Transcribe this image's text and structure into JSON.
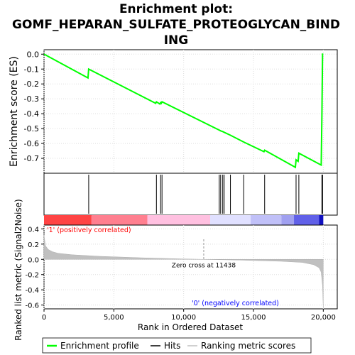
{
  "chart_data": {
    "type": "line",
    "title": "Enrichment plot:\nGOMF_HEPARAN_SULFATE_PROTEOGLYCAN_BIND\nING",
    "title_lines": [
      "Enrichment plot:",
      "GOMF_HEPARAN_SULFATE_PROTEOGLYCAN_BIND",
      "ING"
    ],
    "xlabel": "Rank in Ordered Dataset",
    "top_ylabel": "Enrichment score (ES)",
    "bottom_ylabel": "Ranked list metric (Signal2Noise)",
    "xlim": [
      0,
      21000
    ],
    "x_ticks": [
      0,
      5000,
      10000,
      15000,
      20000
    ],
    "x_tick_labels": [
      "0",
      "5,000",
      "10,000",
      "15,000",
      "20,000"
    ],
    "es_ylim": [
      -0.8,
      0.03
    ],
    "es_ticks": [
      0.0,
      -0.1,
      -0.2,
      -0.3,
      -0.4,
      -0.5,
      -0.6,
      -0.7
    ],
    "es_tick_labels": [
      "0.0",
      "-0.1",
      "-0.2",
      "-0.3",
      "-0.4",
      "-0.5",
      "-0.6",
      "-0.7"
    ],
    "metric_ylim": [
      -0.65,
      0.45
    ],
    "metric_ticks": [
      0.4,
      0.2,
      0.0,
      -0.2,
      -0.4,
      -0.6
    ],
    "metric_tick_labels": [
      "0.4",
      "0.2",
      "0.0",
      "-0.2",
      "-0.4",
      "-0.6"
    ],
    "grid": true,
    "hits": [
      3200,
      8050,
      8350,
      8450,
      12550,
      12650,
      12800,
      12900,
      13350,
      14300,
      15800,
      18050,
      18250,
      19900,
      19950
    ],
    "es_curve": {
      "x": [
        0,
        3150,
        3200,
        8000,
        8050,
        8300,
        8350,
        8400,
        8450,
        12550,
        12650,
        12800,
        12900,
        13350,
        14300,
        15750,
        15800,
        18000,
        18050,
        18200,
        18250,
        19850,
        19900,
        19950,
        20000
      ],
      "y": [
        0.0,
        -0.16,
        -0.1,
        -0.33,
        -0.32,
        -0.335,
        -0.325,
        -0.33,
        -0.32,
        -0.51,
        -0.515,
        -0.52,
        -0.525,
        -0.545,
        -0.59,
        -0.655,
        -0.645,
        -0.76,
        -0.71,
        -0.72,
        -0.665,
        -0.745,
        -0.41,
        0.0,
        0.0
      ]
    },
    "metric_curve": {
      "x": [
        0,
        100,
        300,
        600,
        1000,
        2000,
        4000,
        7000,
        10000,
        11438,
        14000,
        17000,
        18500,
        19300,
        19700,
        19850,
        19950,
        20000
      ],
      "y": [
        0.32,
        0.18,
        0.13,
        0.1,
        0.08,
        0.06,
        0.04,
        0.02,
        0.005,
        0.0,
        -0.01,
        -0.025,
        -0.04,
        -0.07,
        -0.11,
        -0.17,
        -0.35,
        -0.64
      ]
    },
    "zero_cross": 11438,
    "zero_cross_label": "Zero cross at 11438",
    "positive_label": "'1' (positively correlated)",
    "negative_label": "'0' (negatively correlated)",
    "legend": {
      "placement": "bottom",
      "items": [
        {
          "label": "Enrichment profile",
          "color": "#00ff00"
        },
        {
          "label": "Hits",
          "color": "#000000"
        },
        {
          "label": "Ranking metric scores",
          "color": "#c0c0c0"
        }
      ]
    },
    "colors": {
      "es_line": "#00ff00",
      "hit_line": "#000000",
      "metric_fill": "#c0c0c0",
      "positive_label": "#ff0000",
      "negative_label": "#0000ff",
      "grid": "#dddddd"
    },
    "bar_segments": [
      {
        "from": 0,
        "to": 3400,
        "color": "#ff4444"
      },
      {
        "from": 3400,
        "to": 7400,
        "color": "#ff7f8f"
      },
      {
        "from": 7400,
        "to": 11900,
        "color": "#ffc0e0"
      },
      {
        "from": 11900,
        "to": 14800,
        "color": "#e0e0ff"
      },
      {
        "from": 14800,
        "to": 17000,
        "color": "#c0c0f8"
      },
      {
        "from": 17000,
        "to": 17900,
        "color": "#a0a0f0"
      },
      {
        "from": 17900,
        "to": 19700,
        "color": "#6060e8"
      },
      {
        "from": 19700,
        "to": 20000,
        "color": "#1010c0"
      }
    ]
  }
}
